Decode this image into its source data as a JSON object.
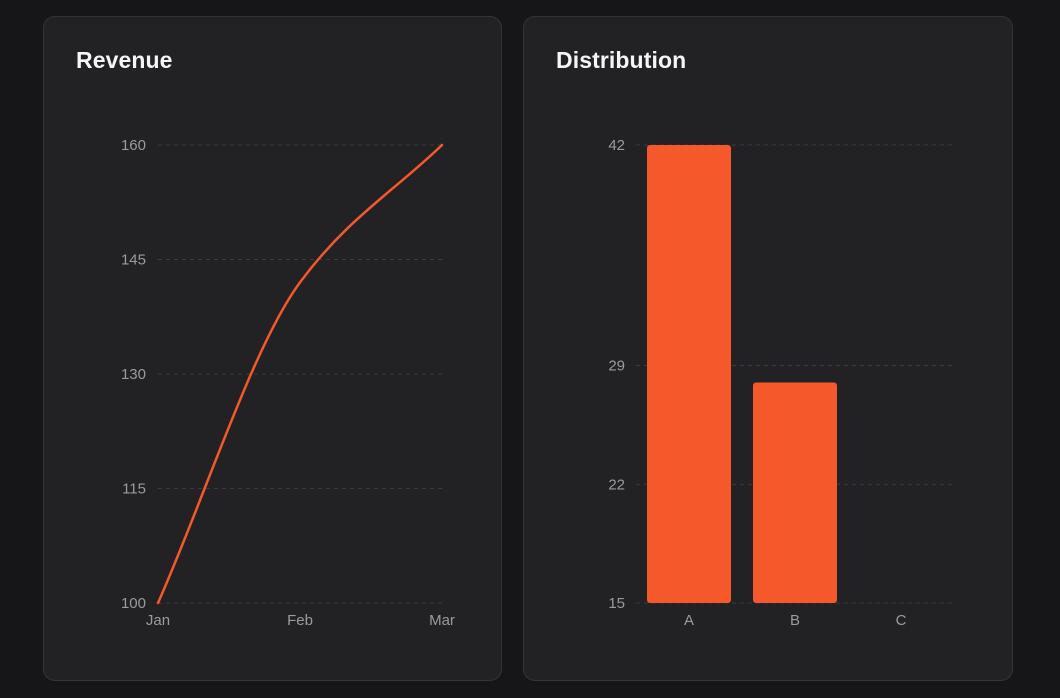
{
  "colors": {
    "accent": "#f4582b",
    "background": "#161618",
    "card": "#222225",
    "grid": "#3b3b40",
    "tick_text": "#9a9aa0",
    "title_text": "#f5f5f7"
  },
  "chart_data": [
    {
      "type": "line",
      "title": "Revenue",
      "x": [
        "Jan",
        "Feb",
        "Mar"
      ],
      "series": [
        {
          "values": [
            100,
            142,
            160
          ]
        }
      ],
      "y_ticks": [
        100,
        115,
        130,
        145,
        160
      ],
      "ylim": [
        100,
        160
      ],
      "grid": true,
      "curve": "smooth"
    },
    {
      "type": "bar",
      "title": "Distribution",
      "categories": [
        "A",
        "B",
        "C"
      ],
      "values": [
        42,
        28,
        15
      ],
      "y_ticks": [
        15,
        22,
        29,
        42
      ],
      "ylim": [
        15,
        42
      ],
      "grid": true
    }
  ]
}
